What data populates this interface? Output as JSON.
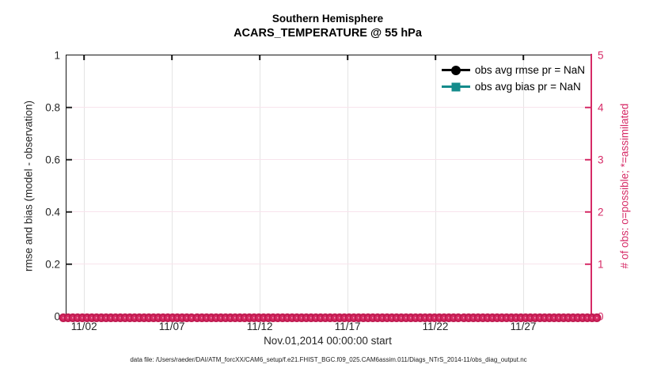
{
  "title": {
    "line1": "Southern Hemisphere",
    "line2": "ACARS_TEMPERATURE @ 55 hPa"
  },
  "colors": {
    "pink": "#d62a66",
    "pink_marker_mid": "#d62a62",
    "pink_marker_edge": "#c01a50",
    "pink_marker_center": "#f2a8c2",
    "pink_grid": "#f8e3ec",
    "teal": "#148b8b",
    "black": "#000000",
    "axis_dark": "#141414",
    "tick_text": "#262626",
    "gray_grid": "#e4e4e4"
  },
  "axes": {
    "left": {
      "label": "rmse and bias (model - observation)",
      "max": 1,
      "ticks": [
        {
          "label": "0",
          "value": 0
        },
        {
          "label": "0.2",
          "value": 0.2
        },
        {
          "label": "0.4",
          "value": 0.4
        },
        {
          "label": "0.6",
          "value": 0.6
        },
        {
          "label": "0.8",
          "value": 0.8
        },
        {
          "label": "1",
          "value": 1
        }
      ]
    },
    "right": {
      "label": "# of obs: o=possible; *=assimilated",
      "max": 5,
      "ticks": [
        {
          "label": "0",
          "value": 0
        },
        {
          "label": "1",
          "value": 1
        },
        {
          "label": "2",
          "value": 2
        },
        {
          "label": "3",
          "value": 3
        },
        {
          "label": "4",
          "value": 4
        },
        {
          "label": "5",
          "value": 5
        }
      ]
    },
    "x": {
      "label": "Nov.01,2014 00:00:00 start",
      "max_days": 29.83,
      "ticks": [
        {
          "label": "11/02",
          "day": 1
        },
        {
          "label": "11/07",
          "day": 6
        },
        {
          "label": "11/12",
          "day": 11
        },
        {
          "label": "11/17",
          "day": 16
        },
        {
          "label": "11/22",
          "day": 21
        },
        {
          "label": "11/27",
          "day": 26
        }
      ]
    }
  },
  "legend": {
    "items": [
      {
        "label": "obs avg rmse pr = NaN",
        "marker": "circle",
        "color": "#000000"
      },
      {
        "label": "obs avg bias pr = NaN",
        "marker": "square",
        "color": "#148b8b"
      }
    ]
  },
  "band": {
    "n_markers": 113,
    "y_value": 0
  },
  "caption": "data file: /Users/raeder/DAI/ATM_forcXX/CAM6_setup/f.e21.FHIST_BGC.f09_025.CAM6assim.011/Diags_NTrS_2014-11/obs_diag_output.nc",
  "chart_data": {
    "type": "line",
    "title": "Southern Hemisphere",
    "subtitle": "ACARS_TEMPERATURE @ 55 hPa",
    "xlabel": "Nov.01,2014 00:00:00 start",
    "x_tick_labels": [
      "11/02",
      "11/07",
      "11/12",
      "11/17",
      "11/22",
      "11/27"
    ],
    "x_range_days": [
      0,
      29.83
    ],
    "left_axis": {
      "label": "rmse and bias (model - observation)",
      "range": [
        0,
        1
      ],
      "ticks": [
        0,
        0.2,
        0.4,
        0.6,
        0.8,
        1
      ]
    },
    "right_axis": {
      "label": "# of obs: o=possible; *=assimilated",
      "range": [
        0,
        5
      ],
      "ticks": [
        0,
        1,
        2,
        3,
        4,
        5
      ],
      "color": "#d62a66"
    },
    "grid": true,
    "legend_position": "top-right-inside",
    "series": [
      {
        "name": "obs avg rmse pr = NaN",
        "axis": "left",
        "marker": "filled-circle",
        "color": "#000000",
        "values": "NaN",
        "note": "no curve plotted (all NaN)"
      },
      {
        "name": "obs avg bias pr = NaN",
        "axis": "left",
        "marker": "filled-square",
        "color": "#148b8b",
        "values": "NaN",
        "note": "no curve plotted (all NaN)"
      },
      {
        "name": "# of obs possible (o)",
        "axis": "right",
        "marker": "open-circle",
        "color": "#d62a66",
        "constant_value": 0,
        "n_points": 113,
        "note": "dense row of markers along y=0 spanning full x range"
      },
      {
        "name": "# of obs assimilated (*)",
        "axis": "right",
        "marker": "asterisk",
        "color": "#d62a66",
        "constant_value": 0,
        "n_points": 113,
        "note": "overlaps possible-obs markers at y=0"
      }
    ]
  }
}
